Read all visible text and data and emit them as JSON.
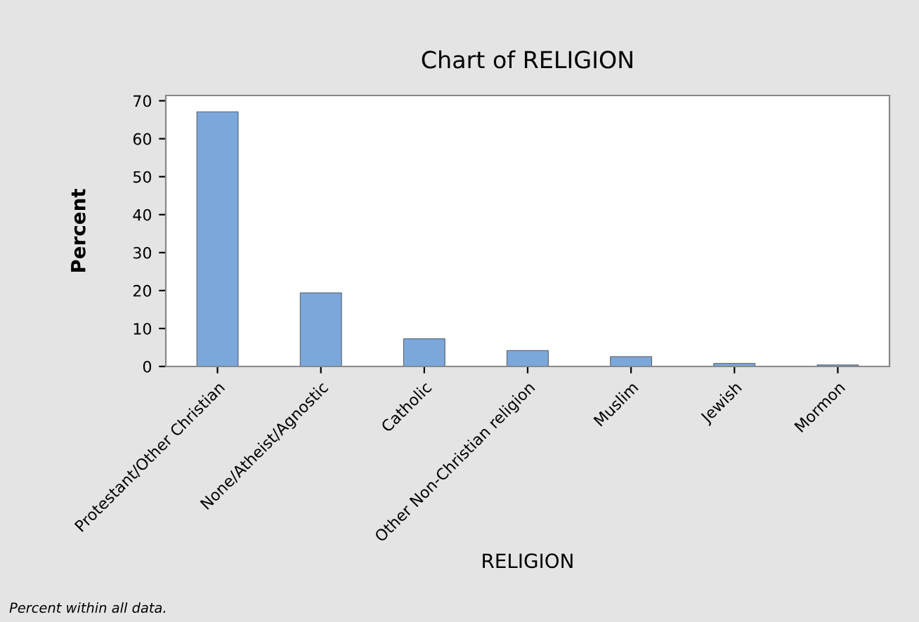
{
  "chart_data": {
    "type": "bar",
    "title": "Chart of RELIGION",
    "xlabel": "RELIGION",
    "ylabel": "Percent",
    "categories": [
      "Protestant/Other Christian",
      "None/Atheist/Agnostic",
      "Catholic",
      "Other Non-Christian religion",
      "Muslim",
      "Jewish",
      "Mormon"
    ],
    "values": [
      67.1,
      19.4,
      7.3,
      4.2,
      2.6,
      0.8,
      0.4
    ],
    "color": "#7ba7db",
    "ylim": [
      0,
      71.4
    ],
    "yticks": [
      0,
      10,
      20,
      30,
      40,
      50,
      60,
      70
    ],
    "grid": false,
    "legend": false,
    "annotations": [
      "Percent within all data."
    ]
  }
}
